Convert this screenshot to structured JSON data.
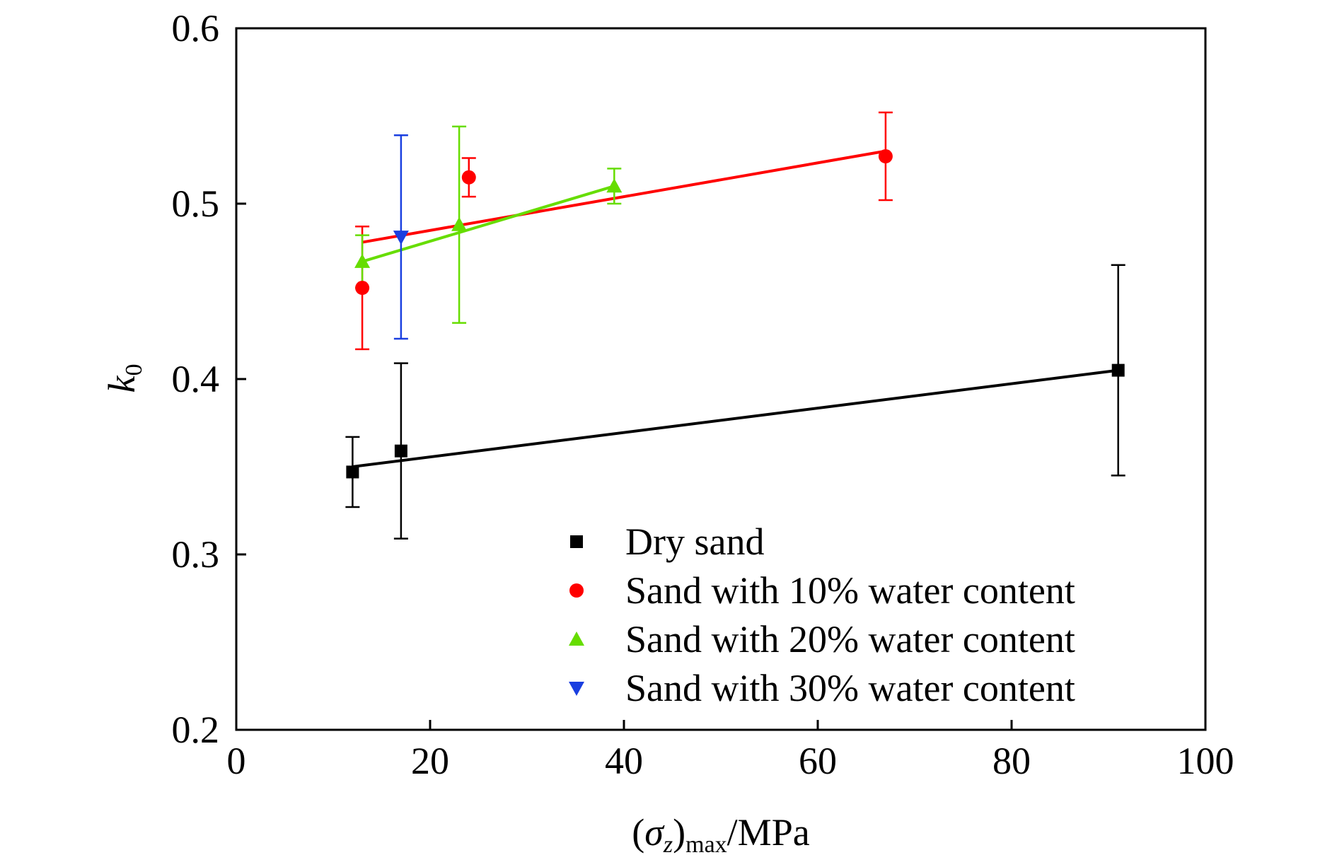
{
  "chart_data": {
    "type": "scatter",
    "xlabel": {
      "open": "(",
      "sigma": "σ",
      "sub_z": "z",
      "close": ")",
      "sub_max": "max",
      "unit": "/MPa"
    },
    "ylabel": {
      "k": "k",
      "sub": "0"
    },
    "xlim": [
      0,
      100
    ],
    "ylim": [
      0.2,
      0.6
    ],
    "xticks": [
      "0",
      "20",
      "40",
      "60",
      "80",
      "100"
    ],
    "yticks": [
      "0.2",
      "0.3",
      "0.4",
      "0.5",
      "0.6"
    ],
    "grid": false,
    "legend_position": "bottom-right",
    "series": [
      {
        "name": "Dry sand",
        "color": "#000000",
        "marker": "square",
        "points": [
          {
            "x": 12,
            "y": 0.347,
            "err": 0.02
          },
          {
            "x": 17,
            "y": 0.359,
            "err": 0.05
          },
          {
            "x": 91,
            "y": 0.405,
            "err": 0.06
          }
        ],
        "fit": [
          [
            12,
            0.35
          ],
          [
            91,
            0.405
          ]
        ]
      },
      {
        "name": "Sand with 10% water content",
        "color": "#ff0000",
        "marker": "circle",
        "points": [
          {
            "x": 13,
            "y": 0.452,
            "err": 0.035
          },
          {
            "x": 24,
            "y": 0.515,
            "err": 0.011
          },
          {
            "x": 67,
            "y": 0.527,
            "err": 0.025
          }
        ],
        "fit": [
          [
            13,
            0.478
          ],
          [
            67,
            0.53
          ]
        ]
      },
      {
        "name": "Sand with 20% water content",
        "color": "#66dd00",
        "marker": "triangle-up",
        "points": [
          {
            "x": 13,
            "y": 0.467,
            "err": 0.015
          },
          {
            "x": 23,
            "y": 0.488,
            "err": 0.056
          },
          {
            "x": 39,
            "y": 0.51,
            "err": 0.01
          }
        ],
        "fit": [
          [
            13,
            0.467
          ],
          [
            39,
            0.51
          ]
        ]
      },
      {
        "name": "Sand with 30% water content",
        "color": "#1a3fe0",
        "marker": "triangle-down",
        "points": [
          {
            "x": 17,
            "y": 0.481,
            "err": 0.058
          }
        ],
        "fit": []
      }
    ]
  }
}
